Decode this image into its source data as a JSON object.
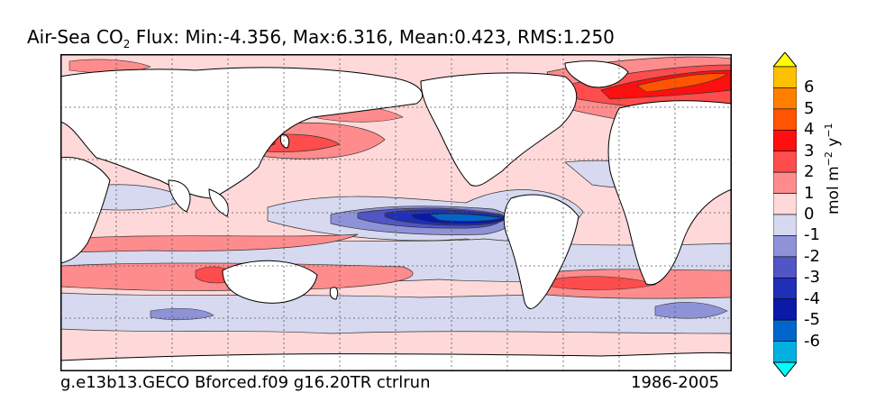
{
  "title": {
    "pre": "Air-Sea CO",
    "sub": "2",
    "post": "  Flux: Min:-4.356, Max:6.316, Mean:0.423, RMS:1.250"
  },
  "footer": {
    "run": "g.e13b13.GECO Bforced.f09 g16.20TR ctrlrun",
    "years": "1986-2005"
  },
  "colorbar": {
    "unit_label": {
      "a": "mol m",
      "b": "−2",
      "c": " y",
      "d": "−1"
    },
    "tick_labels": [
      "6",
      "5",
      "4",
      "3",
      "2",
      "1",
      "0",
      "-1",
      "-2",
      "-3",
      "-4",
      "-5",
      "-6"
    ],
    "levels": [
      {
        "label": ">6.5",
        "color": "#ffff00"
      },
      {
        "label": "5.5-6.5",
        "color": "#ffc000"
      },
      {
        "label": "4.5-5.5",
        "color": "#ff8000"
      },
      {
        "label": "3.5-4.5",
        "color": "#ff5500"
      },
      {
        "label": "2.5-3.5",
        "color": "#ff0f0f"
      },
      {
        "label": "1.5-2.5",
        "color": "#ff4d4d"
      },
      {
        "label": "0.5-1.5",
        "color": "#ff8c8c"
      },
      {
        "label": "0-0.5",
        "color": "#ffd9d9"
      },
      {
        "label": "-0.5-0",
        "color": "#d6d9f0"
      },
      {
        "label": "-1.5--0.5",
        "color": "#8e93d8"
      },
      {
        "label": "-2.5--1.5",
        "color": "#5155c6"
      },
      {
        "label": "-3.5--2.5",
        "color": "#1f2fb8"
      },
      {
        "label": "-4.5--3.5",
        "color": "#0b18a8"
      },
      {
        "label": "-5.5--4.5",
        "color": "#0066cc"
      },
      {
        "label": "-6.5--5.5",
        "color": "#00b0e0"
      },
      {
        "label": "<-6.5",
        "color": "#00ffff"
      }
    ]
  },
  "colors": {
    "land": "#ffffff",
    "ocean_base": "#ffd9d9",
    "grid": "#555555"
  }
}
